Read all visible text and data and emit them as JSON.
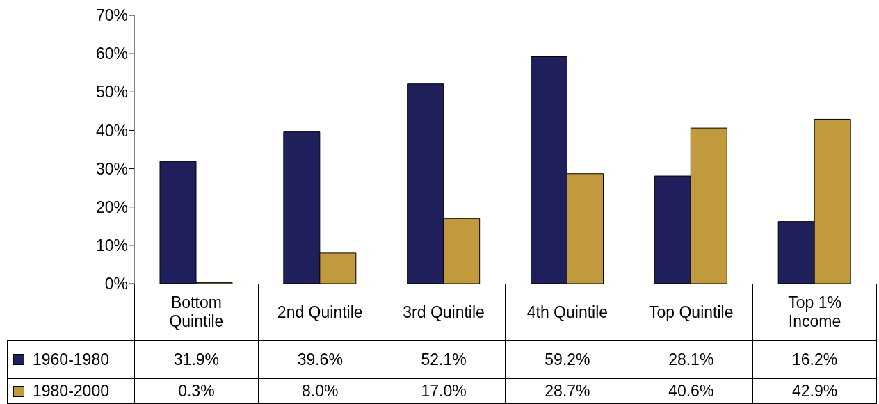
{
  "chart_data": {
    "type": "bar",
    "categories": [
      "Bottom Quintile",
      "2nd Quintile",
      "3rd Quintile",
      "4th Quintile",
      "Top Quintile",
      "Top 1% Income"
    ],
    "series": [
      {
        "name": "1960-1980",
        "color": "#1f1f5c",
        "values": [
          31.9,
          39.6,
          52.1,
          59.2,
          28.1,
          16.2
        ],
        "value_labels": [
          "31.9%",
          "39.6%",
          "52.1%",
          "59.2%",
          "28.1%",
          "16.2%"
        ]
      },
      {
        "name": "1980-2000",
        "color": "#c19a3e",
        "values": [
          0.3,
          8.0,
          17.0,
          28.7,
          40.6,
          42.9
        ],
        "value_labels": [
          "0.3%",
          "8.0%",
          "17.0%",
          "28.7%",
          "40.6%",
          "42.9%"
        ]
      }
    ],
    "ylim": [
      0,
      70
    ],
    "yticks": [
      {
        "value": 0,
        "label": "0%"
      },
      {
        "value": 10,
        "label": "10%"
      },
      {
        "value": 20,
        "label": "20%"
      },
      {
        "value": 30,
        "label": "30%"
      },
      {
        "value": 40,
        "label": "40%"
      },
      {
        "value": 50,
        "label": "50%"
      },
      {
        "value": 60,
        "label": "60%"
      },
      {
        "value": 70,
        "label": "70%"
      }
    ],
    "grid": false,
    "legend": "bottom left"
  }
}
